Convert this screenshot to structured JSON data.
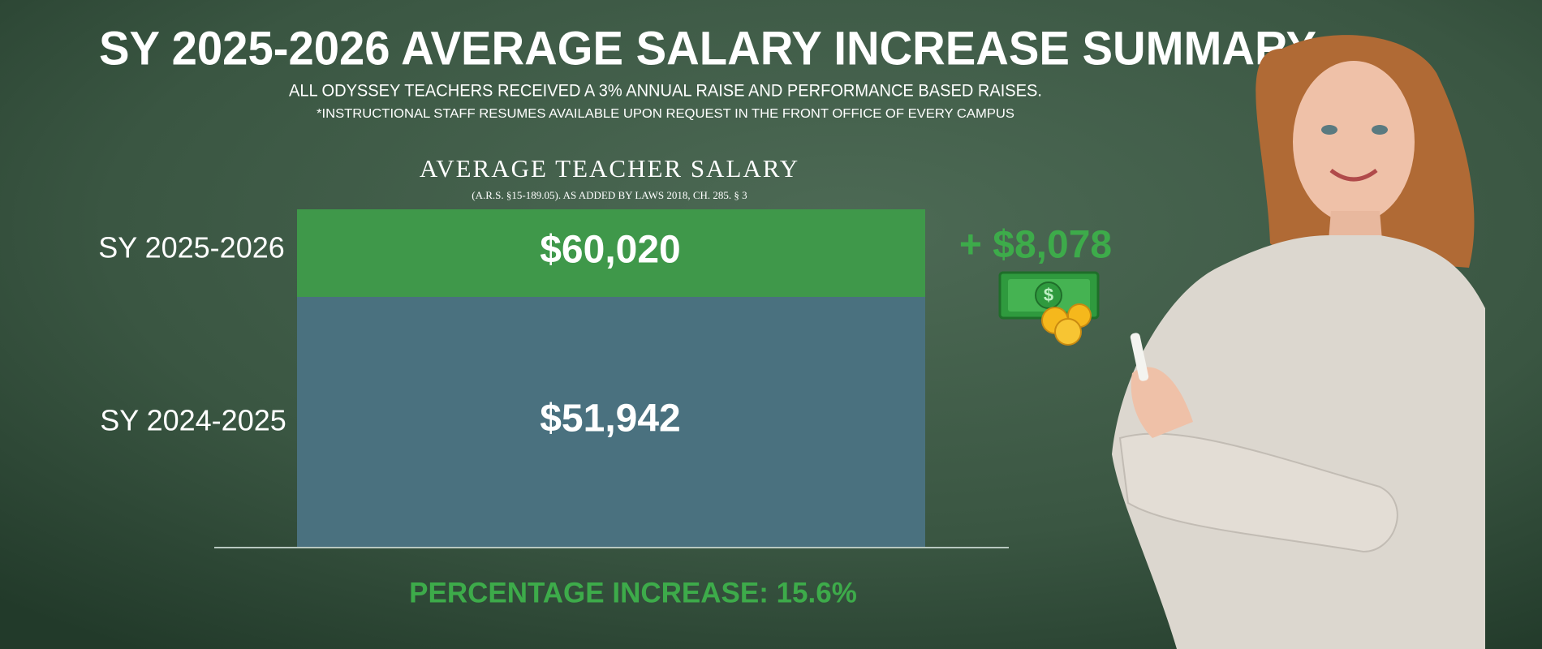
{
  "header": {
    "title": "SY 2025-2026 AVERAGE SALARY INCREASE SUMMARY",
    "subtitle": "ALL ODYSSEY TEACHERS RECEIVED A 3% ANNUAL RAISE AND PERFORMANCE BASED RAISES.",
    "note": "*INSTRUCTIONAL STAFF RESUMES AVAILABLE UPON REQUEST IN THE FRONT OFFICE OF EVERY CAMPUS"
  },
  "salary": {
    "title": "AVERAGE TEACHER SALARY",
    "citation": "(A.R.S. §15-189.05). AS ADDED BY LAWS 2018, CH. 285. § 3",
    "rows": [
      {
        "label": "SY 2025-2026",
        "value": "$60,020"
      },
      {
        "label": "SY 2024-2025",
        "value": "$51,942"
      }
    ],
    "increase": "+ $8,078",
    "percentage": "PERCENTAGE INCREASE: 15.6%"
  }
}
